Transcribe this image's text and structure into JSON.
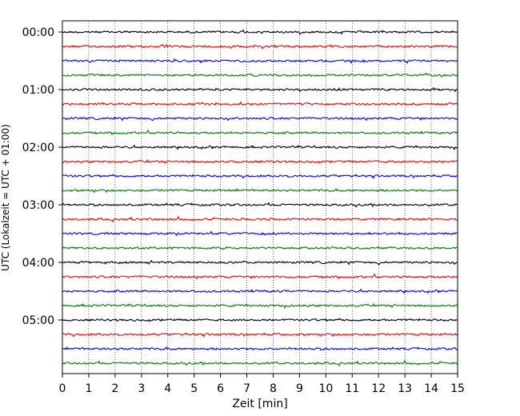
{
  "chart_data": {
    "type": "line",
    "title": "",
    "xlabel": "Zeit  [min]",
    "ylabel": "UTC (Lokalzeit = UTC + 01:00)",
    "xlim": [
      0,
      15
    ],
    "x_ticks": [
      "0",
      "1",
      "2",
      "3",
      "4",
      "5",
      "6",
      "7",
      "8",
      "9",
      "10",
      "11",
      "12",
      "13",
      "14",
      "15"
    ],
    "y_ticks": [
      "00:00",
      "01:00",
      "02:00",
      "03:00",
      "04:00",
      "05:00"
    ],
    "grid": "vertical dotted at each minute",
    "trace_minutes_each": 15,
    "trace_count": 24,
    "trace_start_times": [
      "00:00",
      "00:15",
      "00:30",
      "00:45",
      "01:00",
      "01:15",
      "01:30",
      "01:45",
      "02:00",
      "02:15",
      "02:30",
      "02:45",
      "03:00",
      "03:15",
      "03:30",
      "03:45",
      "04:00",
      "04:15",
      "04:30",
      "04:45",
      "05:00",
      "05:15",
      "05:30",
      "05:45"
    ],
    "trace_colors": [
      "#000000",
      "#ff0000",
      "#0000ff",
      "#008000"
    ]
  }
}
